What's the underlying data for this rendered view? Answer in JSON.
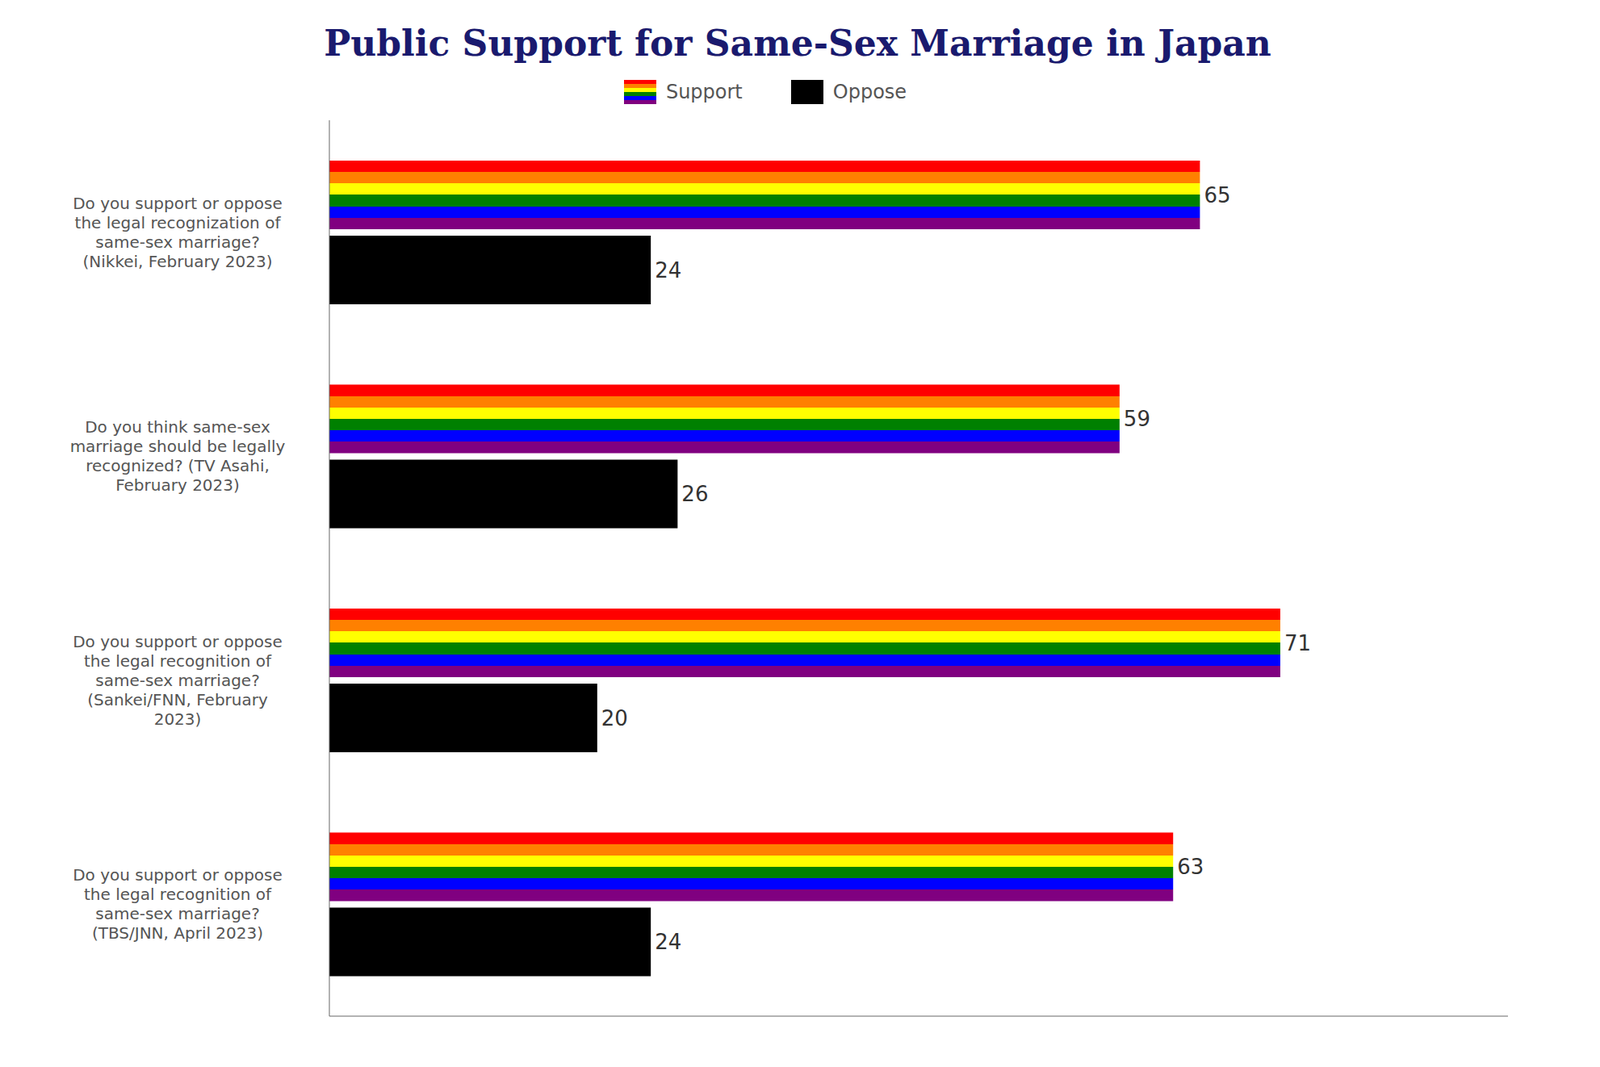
{
  "chart_data": {
    "type": "bar",
    "orientation": "horizontal",
    "title": "Public Support for Same-Sex Marriage in Japan",
    "categories": [
      "Do you support or oppose\nthe legal recognization of\nsame-sex marriage?\n(Nikkei, February 2023)",
      "Do you think same-sex\nmarriage should be legally\nrecognized? (TV Asahi,\nFebruary 2023)",
      "Do you support or oppose\nthe legal recognition of\nsame-sex marriage?\n(Sankei/FNN, February\n2023)",
      "Do you support or oppose\nthe legal recognition of\nsame-sex marriage?\n(TBS/JNN, April 2023)"
    ],
    "series": [
      {
        "name": "Support",
        "colors": [
          "#FF0000",
          "#FF8000",
          "#FFFF00",
          "#008000",
          "#0000FF",
          "#800080"
        ],
        "values": [
          65,
          59,
          71,
          63
        ]
      },
      {
        "name": "Oppose",
        "color": "#000000",
        "values": [
          24,
          26,
          20,
          24
        ]
      }
    ],
    "xlim": [
      0,
      88
    ],
    "data_labels": true,
    "tick_labels": "y",
    "grid": false,
    "legend": "top"
  }
}
